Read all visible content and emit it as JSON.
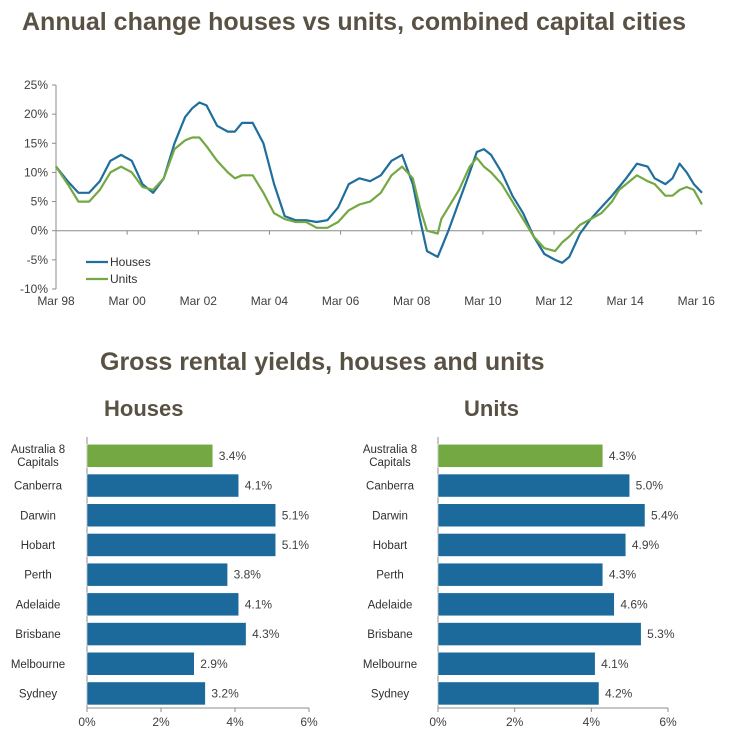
{
  "titles": {
    "main": "Annual change houses vs units, combined capital cities",
    "yields": "Gross rental yields, houses and units",
    "houses": "Houses",
    "units": "Units"
  },
  "colors": {
    "houses": "#1f6e9c",
    "units": "#73a843",
    "bar": "#1b6a9b",
    "bar_highlight": "#73a843"
  },
  "chart_data": [
    {
      "type": "line",
      "title": "Annual change houses vs units, combined capital cities",
      "x_ticks": [
        "Mar 98",
        "Mar 00",
        "Mar 02",
        "Mar 04",
        "Mar 06",
        "Mar 08",
        "Mar 10",
        "Mar 12",
        "Mar 14",
        "Mar 16"
      ],
      "y_ticks": [
        "-10%",
        "-5%",
        "0%",
        "5%",
        "10%",
        "15%",
        "20%",
        "25%"
      ],
      "ylim": [
        -10,
        25
      ],
      "xlim": [
        1998.17,
        2016.33
      ],
      "legend": "bottom-left",
      "grid": false,
      "series": [
        {
          "name": "Houses",
          "x": [
            1998.17,
            1998.5,
            1998.8,
            1999.1,
            1999.4,
            1999.7,
            2000.0,
            2000.3,
            2000.6,
            2000.9,
            2001.2,
            2001.5,
            2001.8,
            2002.0,
            2002.2,
            2002.4,
            2002.7,
            2003.0,
            2003.2,
            2003.4,
            2003.7,
            2004.0,
            2004.3,
            2004.6,
            2004.9,
            2005.2,
            2005.5,
            2005.8,
            2006.1,
            2006.4,
            2006.7,
            2007.0,
            2007.3,
            2007.6,
            2007.9,
            2008.2,
            2008.4,
            2008.6,
            2008.9,
            2009.0,
            2009.2,
            2009.5,
            2009.8,
            2010.0,
            2010.2,
            2010.4,
            2010.7,
            2011.0,
            2011.3,
            2011.6,
            2011.9,
            2012.2,
            2012.4,
            2012.6,
            2012.9,
            2013.2,
            2013.5,
            2013.8,
            2014.0,
            2014.2,
            2014.5,
            2014.8,
            2015.0,
            2015.3,
            2015.5,
            2015.7,
            2015.9,
            2016.1,
            2016.33
          ],
          "y": [
            11,
            8.5,
            6.5,
            6.5,
            8.5,
            12,
            13,
            12,
            8,
            6.5,
            9,
            15,
            19.5,
            21,
            22,
            21.5,
            18,
            17,
            17,
            18.5,
            18.5,
            15,
            8,
            2.5,
            1.8,
            1.8,
            1.5,
            1.8,
            4,
            8,
            9,
            8.5,
            9.5,
            12,
            13,
            8,
            2,
            -3.5,
            -4.5,
            -3,
            0,
            5,
            10,
            13.5,
            14,
            13,
            10,
            6,
            3,
            -1,
            -4,
            -5,
            -5.5,
            -4.5,
            -0.5,
            2,
            4,
            6,
            7.5,
            9,
            11.5,
            11,
            9,
            8,
            9,
            11.5,
            10,
            8,
            6.5
          ]
        },
        {
          "name": "Units",
          "x": [
            1998.17,
            1998.5,
            1998.8,
            1999.1,
            1999.4,
            1999.7,
            2000.0,
            2000.3,
            2000.6,
            2000.9,
            2001.2,
            2001.5,
            2001.8,
            2002.0,
            2002.2,
            2002.4,
            2002.7,
            2003.0,
            2003.2,
            2003.4,
            2003.7,
            2004.0,
            2004.3,
            2004.6,
            2004.9,
            2005.2,
            2005.5,
            2005.8,
            2006.1,
            2006.4,
            2006.7,
            2007.0,
            2007.3,
            2007.6,
            2007.9,
            2008.2,
            2008.4,
            2008.6,
            2008.9,
            2009.0,
            2009.2,
            2009.5,
            2009.8,
            2010.0,
            2010.2,
            2010.4,
            2010.7,
            2011.0,
            2011.3,
            2011.6,
            2011.9,
            2012.2,
            2012.4,
            2012.6,
            2012.9,
            2013.2,
            2013.5,
            2013.8,
            2014.0,
            2014.2,
            2014.5,
            2014.8,
            2015.0,
            2015.3,
            2015.5,
            2015.7,
            2015.9,
            2016.1,
            2016.33
          ],
          "y": [
            11,
            8,
            5,
            5,
            7,
            10,
            11,
            10,
            7.5,
            7,
            9,
            14,
            15.5,
            16,
            16,
            14.5,
            12,
            10,
            9,
            9.5,
            9.5,
            6.5,
            3,
            2,
            1.5,
            1.5,
            0.5,
            0.5,
            1.5,
            3.5,
            4.5,
            5,
            6.5,
            9.5,
            11,
            9,
            4,
            0,
            -0.5,
            2,
            4,
            7,
            11,
            12.5,
            11,
            10,
            8,
            5,
            2,
            -1,
            -3,
            -3.5,
            -2,
            -1,
            1,
            2,
            3,
            5,
            7,
            8,
            9.5,
            8.5,
            8,
            6,
            6,
            7,
            7.5,
            7,
            4.5
          ]
        }
      ]
    },
    {
      "type": "bar",
      "title": "Houses",
      "categories": [
        "Australia 8 Capitals",
        "Canberra",
        "Darwin",
        "Hobart",
        "Perth",
        "Adelaide",
        "Brisbane",
        "Melbourne",
        "Sydney"
      ],
      "values": [
        3.4,
        4.1,
        5.1,
        5.1,
        3.8,
        4.1,
        4.3,
        2.9,
        3.2
      ],
      "value_labels": [
        "3.4%",
        "4.1%",
        "5.1%",
        "5.1%",
        "3.8%",
        "4.1%",
        "4.3%",
        "2.9%",
        "3.2%"
      ],
      "x_ticks": [
        "0%",
        "2%",
        "4%",
        "6%"
      ],
      "xlim": [
        0,
        6
      ]
    },
    {
      "type": "bar",
      "title": "Units",
      "categories": [
        "Australia 8 Capitals",
        "Canberra",
        "Darwin",
        "Hobart",
        "Perth",
        "Adelaide",
        "Brisbane",
        "Melbourne",
        "Sydney"
      ],
      "values": [
        4.3,
        5.0,
        5.4,
        4.9,
        4.3,
        4.6,
        5.3,
        4.1,
        4.2
      ],
      "value_labels": [
        "4.3%",
        "5.0%",
        "5.4%",
        "4.9%",
        "4.3%",
        "4.6%",
        "5.3%",
        "4.1%",
        "4.2%"
      ],
      "x_ticks": [
        "0%",
        "2%",
        "4%",
        "6%"
      ],
      "xlim": [
        0,
        6
      ]
    }
  ]
}
